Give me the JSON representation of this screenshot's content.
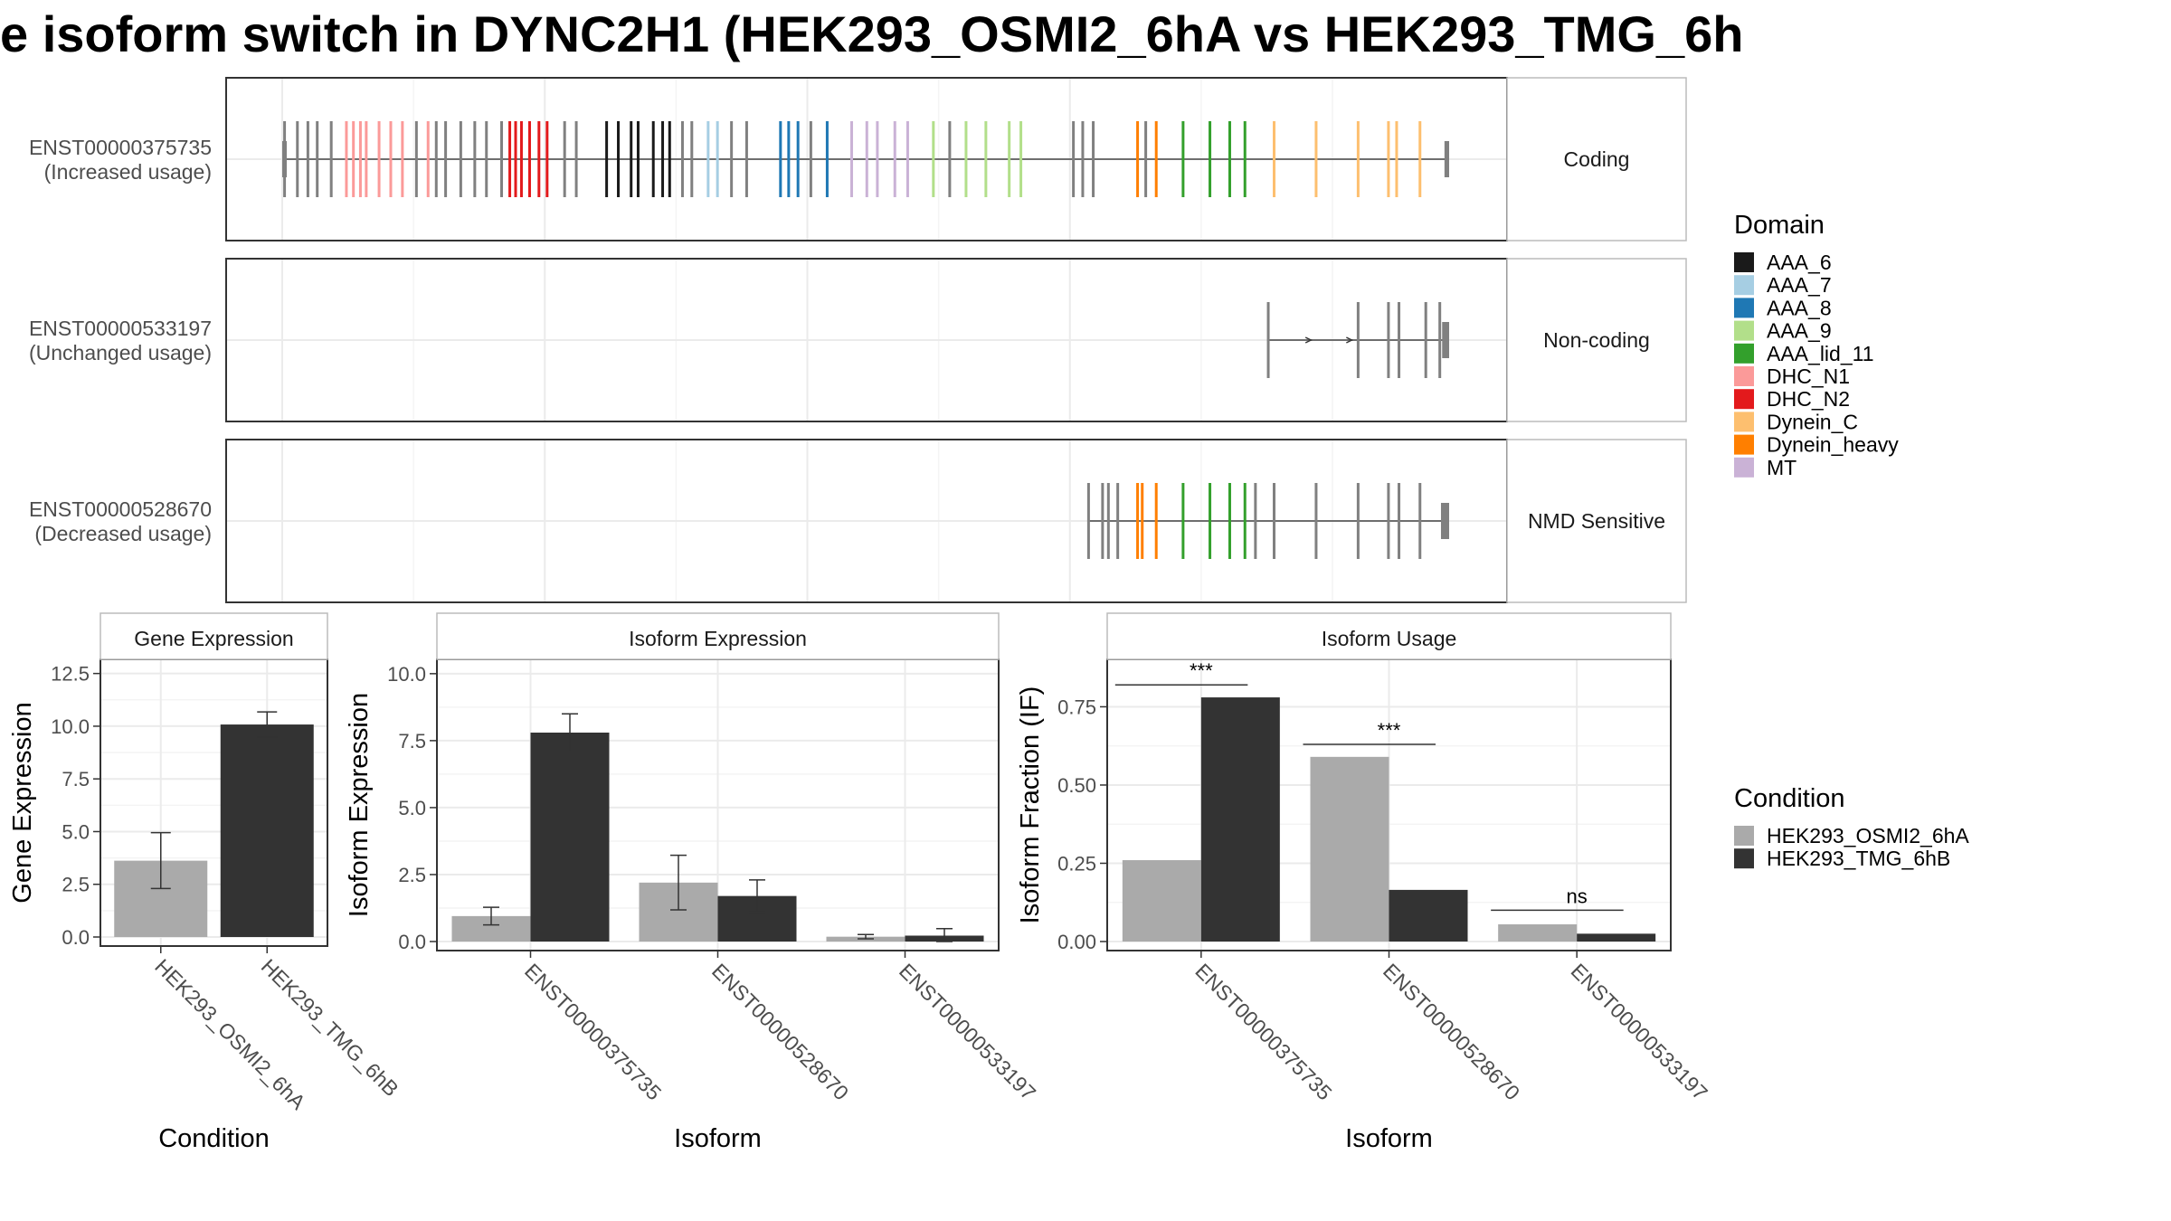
{
  "title": "e isoform switch in DYNC2H1 (HEK293_OSMI2_6hA vs HEK293_TMG_6h",
  "colors": {
    "grey": "#aaaaaa",
    "dark": "#333333",
    "exon": "#808080",
    "panel_border": "#333333",
    "strip_border": "#bcbcbc",
    "grid_major": "#ebebeb",
    "grid_minor": "#f4f4f4",
    "text_axis": "#4d4d4d"
  },
  "chart_data": [
    {
      "type": "transcript-structure",
      "transcripts": [
        {
          "id": "ENST00000375735",
          "usage": "(Increased usage)",
          "class": "Coding",
          "start": 0.0,
          "end": 100.0,
          "utr_blocks": [
            {
              "x": 0.0,
              "w": 0.3
            },
            {
              "x": 99.6,
              "w": 0.4
            }
          ],
          "exons": [
            {
              "x": 0.2,
              "d": "none"
            },
            {
              "x": 1.3,
              "d": "none"
            },
            {
              "x": 2.2,
              "d": "none"
            },
            {
              "x": 3.0,
              "d": "none"
            },
            {
              "x": 4.2,
              "d": "none"
            },
            {
              "x": 5.5,
              "d": "DHC_N1"
            },
            {
              "x": 6.1,
              "d": "DHC_N1"
            },
            {
              "x": 6.7,
              "d": "DHC_N1"
            },
            {
              "x": 7.2,
              "d": "DHC_N1"
            },
            {
              "x": 8.3,
              "d": "DHC_N1"
            },
            {
              "x": 9.3,
              "d": "DHC_N1"
            },
            {
              "x": 10.3,
              "d": "DHC_N1"
            },
            {
              "x": 11.5,
              "d": "none"
            },
            {
              "x": 12.5,
              "d": "DHC_N1"
            },
            {
              "x": 13.2,
              "d": "none"
            },
            {
              "x": 14.0,
              "d": "none"
            },
            {
              "x": 15.3,
              "d": "none"
            },
            {
              "x": 16.5,
              "d": "none"
            },
            {
              "x": 17.5,
              "d": "none"
            },
            {
              "x": 18.8,
              "d": "none"
            },
            {
              "x": 19.5,
              "d": "DHC_N2"
            },
            {
              "x": 20.0,
              "d": "DHC_N2"
            },
            {
              "x": 20.5,
              "d": "DHC_N2"
            },
            {
              "x": 21.2,
              "d": "DHC_N2"
            },
            {
              "x": 22.0,
              "d": "DHC_N2"
            },
            {
              "x": 22.7,
              "d": "DHC_N2"
            },
            {
              "x": 24.2,
              "d": "none"
            },
            {
              "x": 25.2,
              "d": "none"
            },
            {
              "x": 27.8,
              "d": "AAA_6"
            },
            {
              "x": 28.8,
              "d": "AAA_6"
            },
            {
              "x": 29.9,
              "d": "AAA_6"
            },
            {
              "x": 30.5,
              "d": "AAA_6"
            },
            {
              "x": 31.8,
              "d": "AAA_6"
            },
            {
              "x": 32.6,
              "d": "AAA_6"
            },
            {
              "x": 33.2,
              "d": "AAA_6"
            },
            {
              "x": 34.3,
              "d": "none"
            },
            {
              "x": 35.1,
              "d": "none"
            },
            {
              "x": 36.5,
              "d": "AAA_7"
            },
            {
              "x": 37.3,
              "d": "AAA_7"
            },
            {
              "x": 38.5,
              "d": "none"
            },
            {
              "x": 39.8,
              "d": "none"
            },
            {
              "x": 42.7,
              "d": "AAA_8"
            },
            {
              "x": 43.4,
              "d": "AAA_8"
            },
            {
              "x": 44.2,
              "d": "AAA_8"
            },
            {
              "x": 45.3,
              "d": "none"
            },
            {
              "x": 46.7,
              "d": "AAA_8"
            },
            {
              "x": 48.8,
              "d": "MT"
            },
            {
              "x": 50.1,
              "d": "MT"
            },
            {
              "x": 51.0,
              "d": "MT"
            },
            {
              "x": 52.5,
              "d": "MT"
            },
            {
              "x": 53.6,
              "d": "MT"
            },
            {
              "x": 55.8,
              "d": "AAA_9"
            },
            {
              "x": 57.2,
              "d": "none"
            },
            {
              "x": 58.6,
              "d": "AAA_9"
            },
            {
              "x": 60.3,
              "d": "AAA_9"
            },
            {
              "x": 62.3,
              "d": "AAA_9"
            },
            {
              "x": 63.3,
              "d": "AAA_9"
            },
            {
              "x": 67.8,
              "d": "none"
            },
            {
              "x": 68.6,
              "d": "none"
            },
            {
              "x": 69.5,
              "d": "none"
            },
            {
              "x": 73.3,
              "d": "Dynein_heavy"
            },
            {
              "x": 74.0,
              "d": "none"
            },
            {
              "x": 74.9,
              "d": "Dynein_heavy"
            },
            {
              "x": 77.2,
              "d": "AAA_lid_11"
            },
            {
              "x": 79.5,
              "d": "AAA_lid_11"
            },
            {
              "x": 81.2,
              "d": "AAA_lid_11"
            },
            {
              "x": 82.5,
              "d": "AAA_lid_11"
            },
            {
              "x": 85.0,
              "d": "Dynein_C"
            },
            {
              "x": 88.6,
              "d": "Dynein_C"
            },
            {
              "x": 92.2,
              "d": "Dynein_C"
            },
            {
              "x": 94.8,
              "d": "Dynein_C"
            },
            {
              "x": 95.5,
              "d": "Dynein_C"
            },
            {
              "x": 97.5,
              "d": "Dynein_C"
            }
          ]
        },
        {
          "id": "ENST00000533197",
          "usage": "(Unchanged usage)",
          "class": "Non-coding",
          "start": 84.5,
          "end": 100.0,
          "utr_blocks": [
            {
              "x": 99.4,
              "w": 0.6
            }
          ],
          "exons": [
            {
              "x": 84.5,
              "d": "none"
            },
            {
              "x": 92.2,
              "d": "none"
            },
            {
              "x": 94.8,
              "d": "none"
            },
            {
              "x": 95.7,
              "d": "none"
            },
            {
              "x": 98.0,
              "d": "none"
            },
            {
              "x": 99.2,
              "d": "none"
            }
          ],
          "arrows": [
            88.0,
            91.5
          ]
        },
        {
          "id": "ENST00000528670",
          "usage": "(Decreased usage)",
          "class": "NMD Sensitive",
          "start": 69.1,
          "end": 100.0,
          "utr_blocks": [
            {
              "x": 99.3,
              "w": 0.7
            }
          ],
          "exons": [
            {
              "x": 69.1,
              "d": "none"
            },
            {
              "x": 70.3,
              "d": "none"
            },
            {
              "x": 70.8,
              "d": "none"
            },
            {
              "x": 71.6,
              "d": "none"
            },
            {
              "x": 73.3,
              "d": "Dynein_heavy"
            },
            {
              "x": 73.7,
              "d": "Dynein_heavy"
            },
            {
              "x": 74.9,
              "d": "Dynein_heavy"
            },
            {
              "x": 77.2,
              "d": "AAA_lid_11"
            },
            {
              "x": 79.5,
              "d": "AAA_lid_11"
            },
            {
              "x": 81.2,
              "d": "AAA_lid_11"
            },
            {
              "x": 82.5,
              "d": "AAA_lid_11"
            },
            {
              "x": 83.4,
              "d": "none"
            },
            {
              "x": 85.0,
              "d": "none"
            },
            {
              "x": 88.6,
              "d": "none"
            },
            {
              "x": 92.2,
              "d": "none"
            },
            {
              "x": 94.8,
              "d": "none"
            },
            {
              "x": 95.7,
              "d": "none"
            },
            {
              "x": 97.5,
              "d": "none"
            }
          ]
        }
      ]
    },
    {
      "type": "bar",
      "title": "Gene Expression",
      "xlabel": "Condition",
      "ylabel": "Gene Expression",
      "ylim": [
        0,
        13.0
      ],
      "yticks": [
        "0.0",
        "2.5",
        "5.0",
        "7.5",
        "10.0",
        "12.5"
      ],
      "categories": [
        "HEK293_OSMI2_6hA",
        "HEK293_TMG_6hB"
      ],
      "values": [
        3.62,
        10.08
      ],
      "errors": [
        [
          2.3,
          4.95
        ],
        [
          9.48,
          10.68
        ]
      ]
    },
    {
      "type": "bar",
      "title": "Isoform Expression",
      "xlabel": "Isoform",
      "ylabel": "Isoform Expression",
      "ylim": [
        0,
        10.4
      ],
      "yticks": [
        "0.0",
        "2.5",
        "5.0",
        "7.5",
        "10.0"
      ],
      "categories": [
        "ENST00000375735",
        "ENST00000528670",
        "ENST00000533197"
      ],
      "series": [
        {
          "name": "HEK293_OSMI2_6hA",
          "values": [
            0.95,
            2.2,
            0.18
          ],
          "errors": [
            [
              0.62,
              1.28
            ],
            [
              1.18,
              3.22
            ],
            [
              0.1,
              0.26
            ]
          ]
        },
        {
          "name": "HEK293_TMG_6hB",
          "values": [
            7.8,
            1.7,
            0.22
          ],
          "errors": [
            [
              7.1,
              8.5
            ],
            [
              1.1,
              2.3
            ],
            [
              0.0,
              0.48
            ]
          ]
        }
      ]
    },
    {
      "type": "bar",
      "title": "Isoform Usage",
      "xlabel": "Isoform",
      "ylabel": "Isoform Fraction (IF)",
      "ylim": [
        0,
        0.89
      ],
      "yticks": [
        "0.00",
        "0.25",
        "0.50",
        "0.75"
      ],
      "categories": [
        "ENST00000375735",
        "ENST00000528670",
        "ENST00000533197"
      ],
      "series": [
        {
          "name": "HEK293_OSMI2_6hA",
          "values": [
            0.26,
            0.59,
            0.055
          ]
        },
        {
          "name": "HEK293_TMG_6hB",
          "values": [
            0.78,
            0.165,
            0.025
          ]
        }
      ],
      "significance": [
        "***",
        "***",
        "ns"
      ],
      "significance_y": [
        0.82,
        0.63,
        0.1
      ]
    }
  ],
  "legend_domain": {
    "title": "Domain",
    "items": [
      {
        "label": "AAA_6",
        "color": "#1a1a1a"
      },
      {
        "label": "AAA_7",
        "color": "#a6cee3"
      },
      {
        "label": "AAA_8",
        "color": "#1f78b4"
      },
      {
        "label": "AAA_9",
        "color": "#b2df8a"
      },
      {
        "label": "AAA_lid_11",
        "color": "#33a02c"
      },
      {
        "label": "DHC_N1",
        "color": "#fb9a99"
      },
      {
        "label": "DHC_N2",
        "color": "#e31a1c"
      },
      {
        "label": "Dynein_C",
        "color": "#fdbf6f"
      },
      {
        "label": "Dynein_heavy",
        "color": "#ff7f00"
      },
      {
        "label": "MT",
        "color": "#cab2d6"
      }
    ]
  },
  "legend_condition": {
    "title": "Condition",
    "items": [
      {
        "label": "HEK293_OSMI2_6hA",
        "color": "#aaaaaa"
      },
      {
        "label": "HEK293_TMG_6hB",
        "color": "#333333"
      }
    ]
  }
}
